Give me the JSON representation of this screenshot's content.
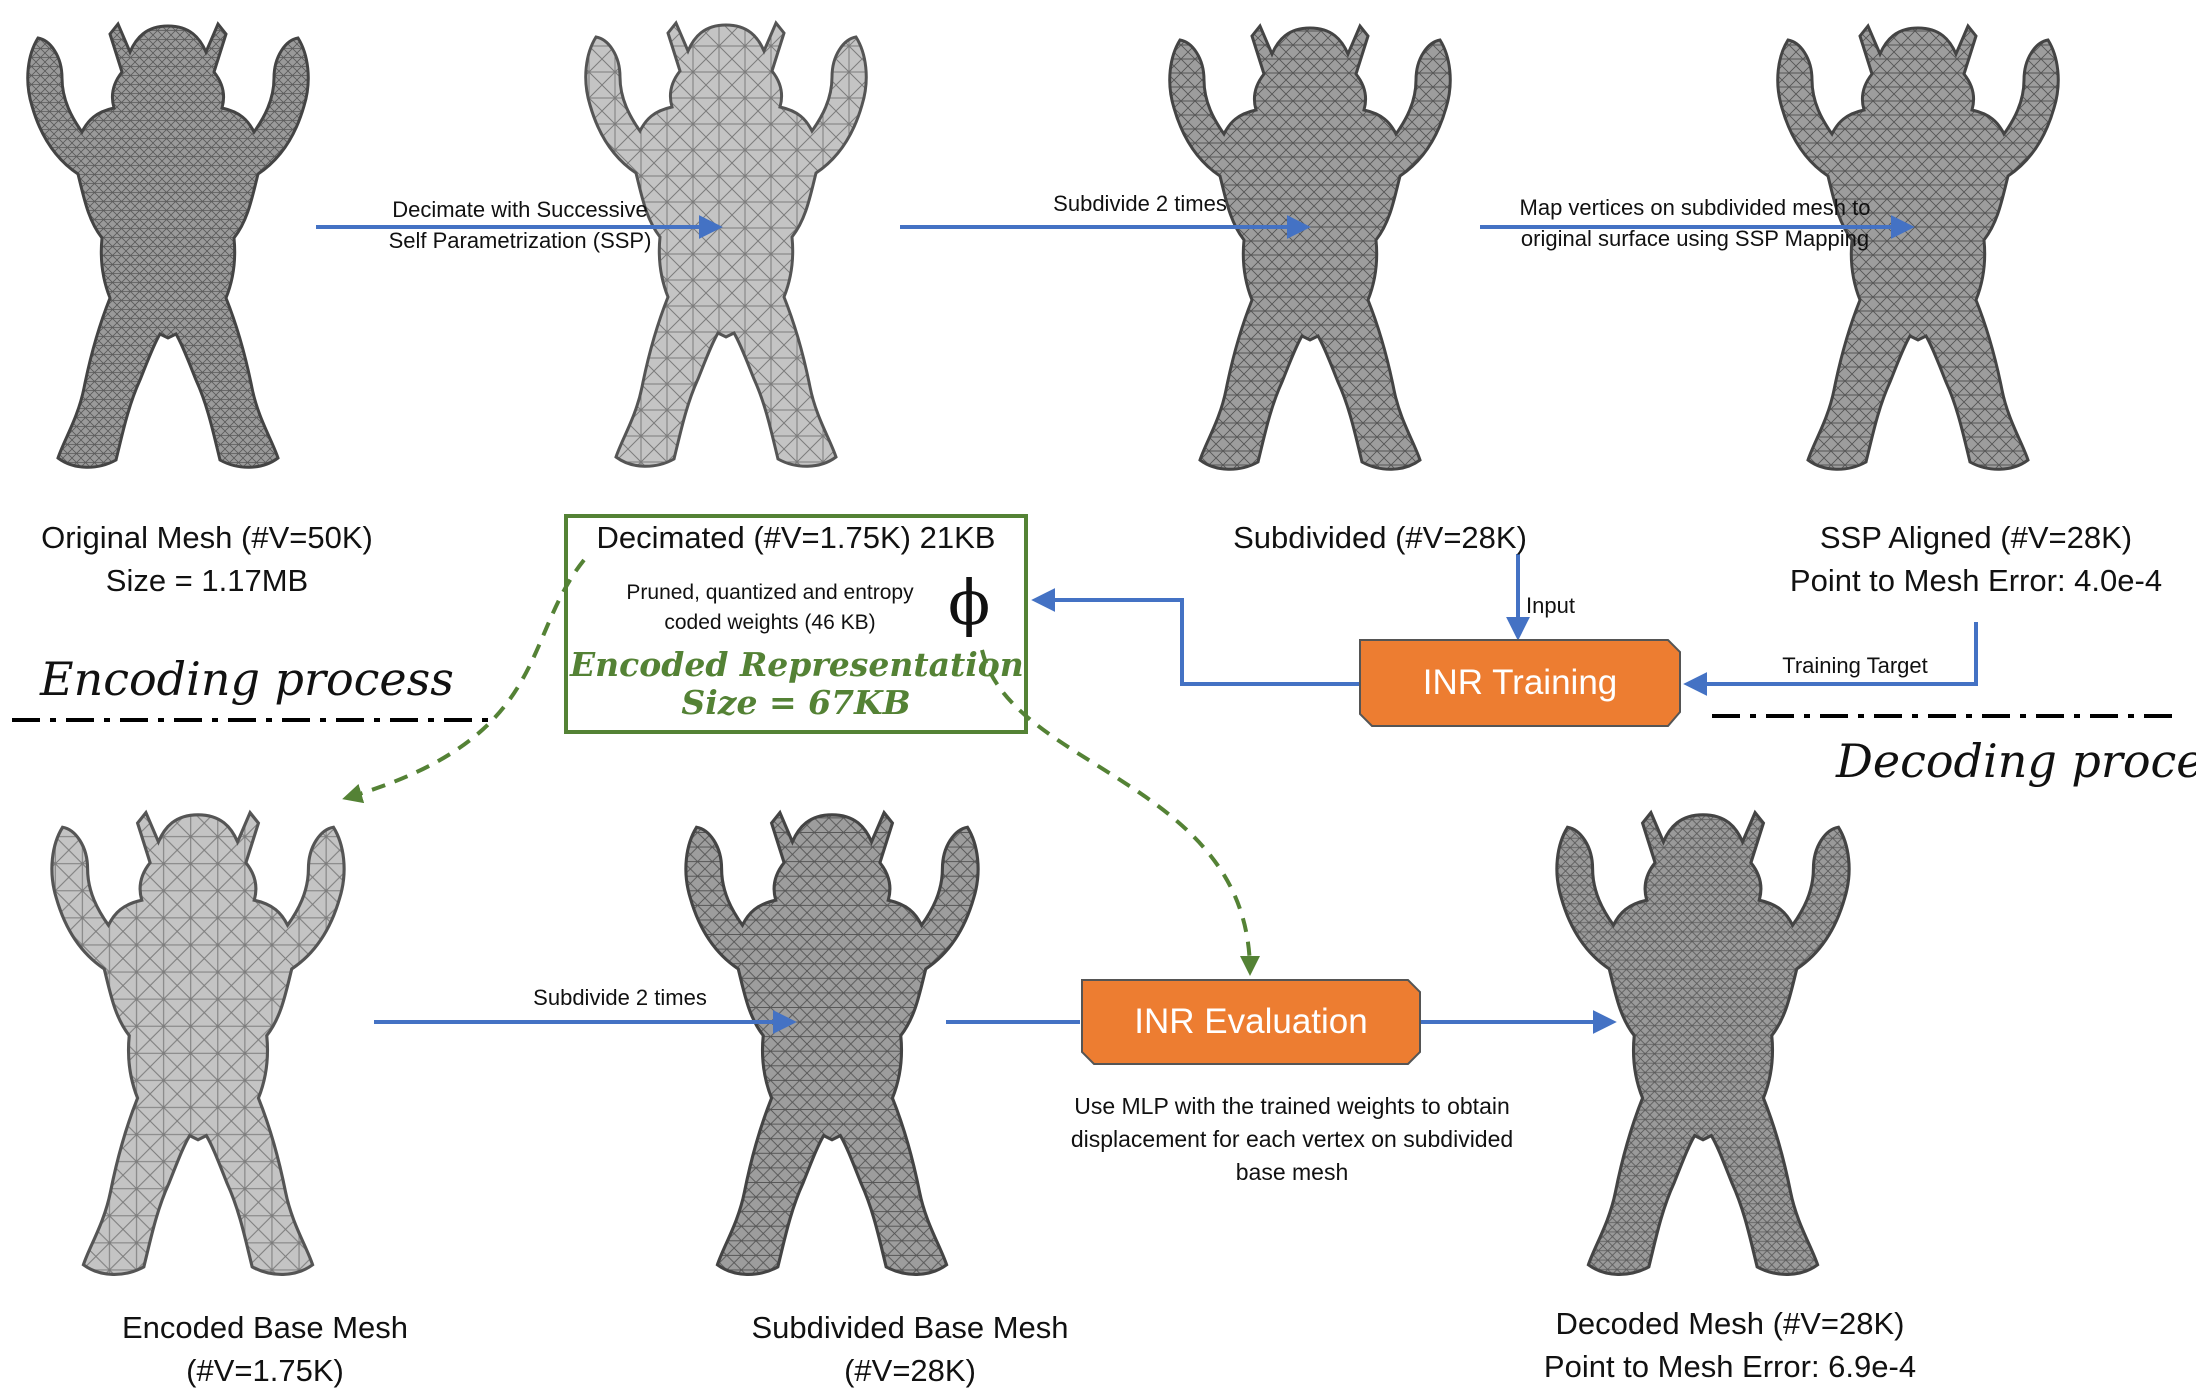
{
  "meshes": {
    "original": {
      "line1": "Original Mesh (#V=50K)",
      "line2": "Size = 1.17MB"
    },
    "decimated": {
      "line1": "Decimated (#V=1.75K) 21KB"
    },
    "subdivided": {
      "line1": "Subdivided (#V=28K)"
    },
    "ssp_aligned": {
      "line1": "SSP Aligned (#V=28K)",
      "line2": "Point to Mesh Error: 4.0e-4"
    },
    "encoded_base": {
      "line1": "Encoded Base Mesh",
      "line2": "(#V=1.75K)"
    },
    "subdivided_base": {
      "line1": "Subdivided Base Mesh",
      "line2": "(#V=28K)"
    },
    "decoded": {
      "line1": "Decoded Mesh (#V=28K)",
      "line2": "Point to Mesh Error: 6.9e-4"
    }
  },
  "arrows": {
    "decimate": {
      "line1": "Decimate with Successive",
      "line2": "Self Parametrization (SSP)"
    },
    "subdivide_top": {
      "label": "Subdivide 2 times"
    },
    "map_vertices": {
      "line1": "Map vertices on subdivided mesh to",
      "line2": "original surface using SSP Mapping"
    },
    "input": {
      "label": "Input"
    },
    "training_target": {
      "label": "Training Target"
    },
    "subdivide_bottom": {
      "label": "Subdivide 2 times"
    }
  },
  "boxes": {
    "inr_training": "INR Training",
    "inr_evaluation": "INR Evaluation"
  },
  "encoded": {
    "weights_line1": "Pruned, quantized and entropy",
    "weights_line2": "coded  weights (46 KB)",
    "phi": "ϕ",
    "repr_line1": "Encoded Representation",
    "repr_line2": "Size = 67KB"
  },
  "evaluation_note": {
    "line1": "Use MLP with the trained weights to obtain",
    "line2": "displacement for each vertex on subdivided",
    "line3": "base mesh"
  },
  "processes": {
    "encoding": "Encoding process",
    "decoding": "Decoding process"
  },
  "colors": {
    "arrow_blue": "#4472C4",
    "green": "#548235",
    "orange": "#ED7D31"
  }
}
